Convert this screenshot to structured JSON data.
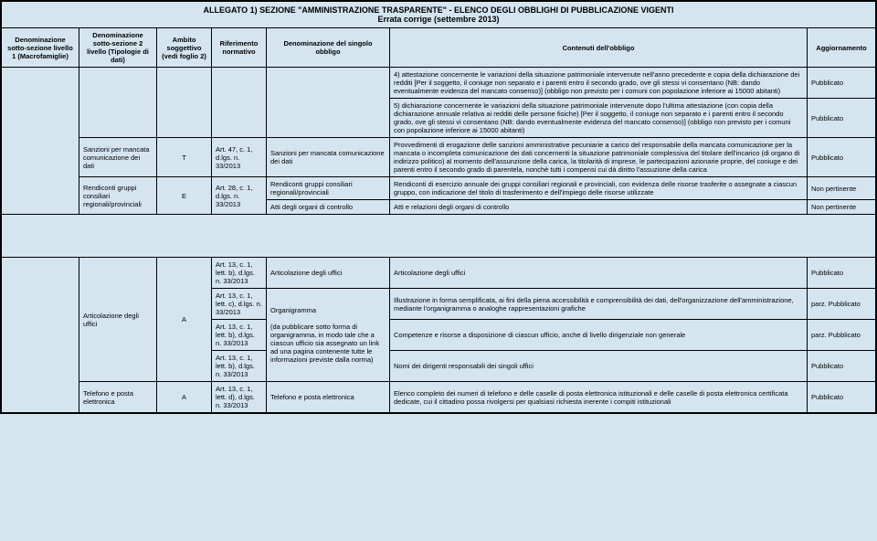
{
  "title": "ALLEGATO 1) SEZIONE \"AMMINISTRAZIONE TRASPARENTE\" - ELENCO DEGLI OBBLIGHI DI PUBBLICAZIONE VIGENTI",
  "subtitle": "Errata corrige (settembre 2013)",
  "headers": {
    "h1": "Denominazione sotto-sezione livello 1 (Macrofamiglie)",
    "h2": "Denominazione sotto-sezione 2 livello (Tipologie di dati)",
    "h3": "Ambito soggettivo (vedi foglio 2)",
    "h4": "Riferimento normativo",
    "h5": "Denominazione del singolo obbligo",
    "h6": "Contenuti dell'obbligo",
    "h7": "Aggiornamento"
  },
  "r1_c6": "4) attestazione concernente le variazioni della situazione patrimoniale intervenute nell'anno precedente e copia della dichiarazione dei redditi [Per il soggetto, il coniuge non separato e i parenti entro il secondo grado, ove gli stessi vi consentano (NB: dando eventualmente evidenza del mancato consenso)] (obbligo non previsto per i comuni con popolazione inferiore ai 15000 abitanti)",
  "r1_c7": "Pubblicato",
  "r2_c6": "5) dichiarazione concernente le variazioni della situazione patrimoniale intervenute dopo l'ultima attestazione (con copia della dichiarazione annuale relativa ai redditi delle persone fisiche) [Per il soggetto, il coniuge non separato e i parenti entro il secondo grado, ove gli stessi vi consentano (NB: dando eventualmente evidenza del mancato consenso)] (obbligo non previsto per i comuni con popolazione inferiore ai 15000 abitanti)",
  "r2_c7": "Pubblicato",
  "r3_c2": "Sanzioni per mancata comunicazione dei dati",
  "r3_c3": "T",
  "r3_c4": "Art. 47, c. 1, d.lgs. n. 33/2013",
  "r3_c5": "Sanzioni per mancata comunicazione dei dati",
  "r3_c6": "Provvedimenti di erogazione delle sanzioni amministrative pecuniarie a carico del responsabile della mancata comunicazione per la mancata o incompleta comunicazione dei dati concernenti la situazione patrimoniale complessiva del titolare dell'incarico (di organo di indirizzo politico) al momento dell'assunzione della carica, la titolarità di imprese, le partecipazioni azionarie proprie, del coniuge e dei parenti entro il secondo grado di parentela, nonchè tutti i compensi cui dà diritto l'assuzione della carica",
  "r3_c7": "Pubblicato",
  "r4_c2": "Rendiconti gruppi consiliari regionali/provinciali",
  "r4_c3": "E",
  "r4_c4": "Art. 28, c. 1, d.lgs. n. 33/2013",
  "r4_c5": "Rendiconti gruppi consiliari regionali/provinciali",
  "r4_c6": "Rendiconti di esercizio annuale dei gruppi consiliari regionali e provinciali, con evidenza delle risorse trasferite o assegnate a ciascun gruppo, con indicazione del titolo di trasferimento e dell'impiego delle risorse utilizzate",
  "r4_c7": "Non pertinente",
  "r5_c5": "Atti degli organi di controllo",
  "r5_c6": "Atti e relazioni degli organi di controllo",
  "r5_c7": "Non pertinente",
  "r6_c2": "Articolazione degli uffici",
  "r6_c3": "A",
  "r6_c4": "Art. 13, c. 1, lett. b), d.lgs. n. 33/2013",
  "r6_c5": "Articolazione degli uffici",
  "r6_c6": "Articolazione degli uffici",
  "r6_c7": "Pubblicato",
  "r7_c4": "Art. 13, c. 1, lett. c), d.lgs. n. 33/2013",
  "r7_c5": "Organigramma",
  "r7_c6": "Illustrazione in forma semplificata, ai fini della piena accessibilità e comprensibilità dei dati, dell'organizzazione dell'amministrazione, mediante l'organigramma o analoghe rappresentazioni grafiche",
  "r7_c7": "parz. Pubblicato",
  "r8_c4": "Art. 13, c. 1, lett. b), d.lgs. n. 33/2013",
  "r8_c5": "(da pubblicare sotto forma di organigramma, in modo tale che a ciascun ufficio sia assegnato un link ad una pagina contenente tutte le informazioni previste dalla norma)",
  "r8_c6": "Competenze e risorse a disposizione di ciascun ufficio, anche di livello dirigenziale non generale",
  "r8_c7": "parz. Pubblicato",
  "r9_c4": "Art. 13, c. 1, lett. b), d.lgs. n. 33/2013",
  "r9_c6": "Nomi dei dirigenti responsabili dei singoli uffici",
  "r9_c7": "Pubblicato",
  "r10_c2": "Telefono e posta elettronica",
  "r10_c3": "A",
  "r10_c4": "Art. 13, c. 1, lett. d), d.lgs. n. 33/2013",
  "r10_c5": "Telefono e posta elettronica",
  "r10_c6": "Elenco completo dei numeri di telefono e delle caselle di posta elettronica istituzionali e delle caselle di posta elettronica certificata dedicate, cui il cittadino possa rivolgersi per qualsiasi richiesta inerente i compiti istituzionali",
  "r10_c7": "Pubblicato"
}
